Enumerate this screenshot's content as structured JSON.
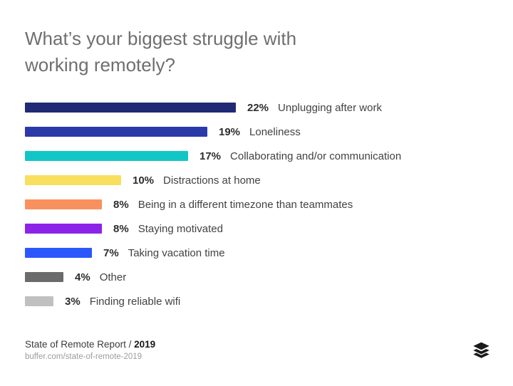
{
  "title": {
    "line1": "What’s your biggest struggle with",
    "line2": "working remotely?"
  },
  "chart_data": {
    "type": "bar",
    "orientation": "horizontal",
    "title": "What’s your biggest struggle with working remotely?",
    "unit": "%",
    "categories": [
      "Unplugging after work",
      "Loneliness",
      "Collaborating and/or communication",
      "Distractions at home",
      "Being in a different timezone than teammates",
      "Staying motivated",
      "Taking vacation time",
      "Other",
      "Finding reliable wifi"
    ],
    "values": [
      22,
      19,
      17,
      10,
      8,
      8,
      7,
      4,
      3
    ],
    "value_labels": [
      "22%",
      "19%",
      "17%",
      "10%",
      "8%",
      "8%",
      "7%",
      "4%",
      "3%"
    ],
    "bar_colors": [
      "#212a74",
      "#2a3aa8",
      "#13c6c6",
      "#f8e05e",
      "#f9915e",
      "#8c24e8",
      "#2b57fb",
      "#6b6b6b",
      "#c0c0c0"
    ],
    "xlim": [
      0,
      25
    ],
    "grid": false,
    "legend": false
  },
  "footer": {
    "report_label": "State of Remote Report /",
    "year": "2019",
    "url": "buffer.com/state-of-remote-2019"
  },
  "logo": {
    "name": "buffer-logo",
    "color": "#1a1a1a"
  }
}
